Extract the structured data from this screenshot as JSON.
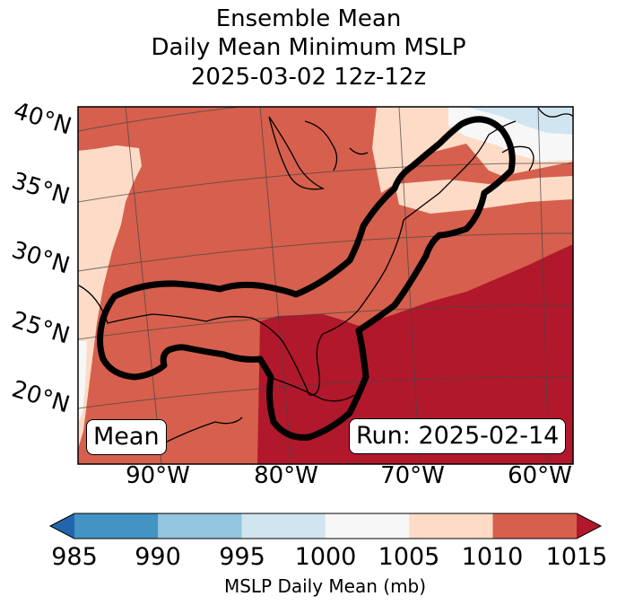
{
  "title": {
    "line1": "Ensemble Mean",
    "line2": "Daily Mean Minimum MSLP",
    "line3": "2025-03-02 12z-12z"
  },
  "labels": {
    "mean_badge": "Mean",
    "run_badge": "Run: 2025-02-14"
  },
  "axes": {
    "lat_labels": [
      "40°N",
      "35°N",
      "30°N",
      "25°N",
      "20°N"
    ],
    "lon_labels": [
      "90°W",
      "80°W",
      "70°W",
      "60°W"
    ]
  },
  "colorbar": {
    "label": "MSLP Daily Mean (mb)",
    "ticks": [
      "985",
      "990",
      "995",
      "1000",
      "1005",
      "1010",
      "1015"
    ],
    "colors": {
      "below_985": "#2166ac",
      "985_990": "#4393c3",
      "990_995": "#92c5de",
      "995_1000": "#d1e5f0",
      "1000_1005": "#f7f7f7",
      "1005_1010": "#fddbc7",
      "1010_1015": "#d6604d",
      "above_1015": "#b2182b"
    }
  },
  "chart_data": {
    "type": "heatmap",
    "title": "Ensemble Mean Daily Mean Minimum MSLP 2025-03-02 12z-12z",
    "variable": "MSLP Daily Mean (mb)",
    "color_levels": [
      985,
      990,
      995,
      1000,
      1005,
      1010,
      1015
    ],
    "extend": "both",
    "lat_range": [
      20,
      40
    ],
    "lon_range": [
      -90,
      -60
    ],
    "contour": "black outline along Gulf of Mexico coast and US East Coast to Nova Scotia"
  }
}
